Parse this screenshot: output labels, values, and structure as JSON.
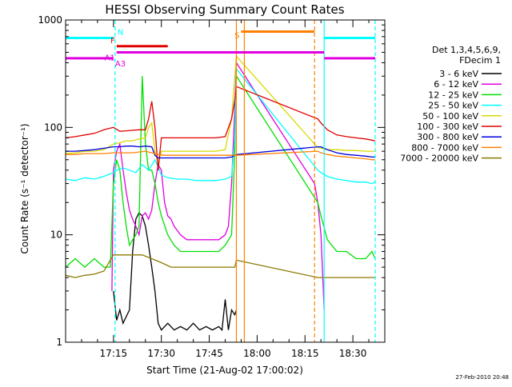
{
  "chart_data": {
    "type": "line",
    "title": "HESSI Observing Summary Count Rates",
    "xlabel": "Start Time (21-Aug-02 17:00:02)",
    "ylabel": "Count Rate (s⁻¹ detector⁻¹)",
    "yscale": "log",
    "ylim": [
      1,
      1000
    ],
    "xlim_minutes": [
      0,
      100
    ],
    "x_ticks": [
      {
        "t": 15,
        "label": "17:15"
      },
      {
        "t": 30,
        "label": "17:30"
      },
      {
        "t": 45,
        "label": "17:45"
      },
      {
        "t": 60,
        "label": "18:00"
      },
      {
        "t": 75,
        "label": "18:15"
      },
      {
        "t": 90,
        "label": "18:30"
      }
    ],
    "y_ticks": [
      {
        "v": 1,
        "label": "1"
      },
      {
        "v": 10,
        "label": "10"
      },
      {
        "v": 100,
        "label": "100"
      },
      {
        "v": 1000,
        "label": "1000"
      }
    ],
    "legend": {
      "placement": "right",
      "header": [
        "Det 1,3,4,5,6,9,",
        "FDecim 1"
      ],
      "entries": [
        {
          "label": "3 - 6 keV",
          "color": "#000000"
        },
        {
          "label": "6 - 12 keV",
          "color": "#e000e0"
        },
        {
          "label": "12 - 25 keV",
          "color": "#00e000"
        },
        {
          "label": "25 - 50 keV",
          "color": "#00ffff"
        },
        {
          "label": "50 - 100 keV",
          "color": "#d8d800"
        },
        {
          "label": "100 - 300 keV",
          "color": "#e00000"
        },
        {
          "label": "300 - 800 keV",
          "color": "#0000e0"
        },
        {
          "label": "800 - 7000 keV",
          "color": "#ff8000"
        },
        {
          "label": "7000 - 20000 keV",
          "color": "#8b7a00"
        }
      ]
    },
    "series": [
      {
        "name": "3 - 6 keV",
        "color": "#000000",
        "x": [
          15,
          16,
          17,
          18,
          20,
          21,
          22,
          23,
          24,
          25,
          26,
          27,
          28,
          29,
          30,
          32,
          34,
          36,
          38,
          40,
          42,
          44,
          46,
          48,
          49,
          50,
          51,
          52,
          53,
          53.5
        ],
        "y": [
          3,
          1.6,
          2,
          1.5,
          2,
          7,
          14,
          16,
          15,
          12,
          8,
          5,
          3,
          1.5,
          1.3,
          1.5,
          1.3,
          1.4,
          1.3,
          1.5,
          1.3,
          1.4,
          1.3,
          1.4,
          1.3,
          2.5,
          1.3,
          2,
          1.8,
          2
        ]
      },
      {
        "name": "6 - 12 keV",
        "color": "#e000e0",
        "x": [
          14.5,
          15,
          16,
          17,
          18,
          19,
          20,
          21,
          22,
          23,
          24,
          25,
          26,
          27,
          28,
          29,
          30,
          31,
          32,
          33,
          34,
          36,
          38,
          40,
          42,
          44,
          46,
          48,
          50,
          51,
          52,
          53,
          53.5,
          78,
          79,
          80,
          81
        ],
        "y": [
          3,
          40,
          60,
          70,
          40,
          25,
          17,
          14,
          12,
          10,
          15,
          16,
          14,
          17,
          30,
          45,
          40,
          20,
          15,
          14,
          12,
          10,
          9,
          9,
          9,
          9,
          9,
          9,
          10,
          12,
          30,
          150,
          400,
          30,
          20,
          10,
          2
        ]
      },
      {
        "name": "12 - 25 keV",
        "color": "#00e000",
        "x": [
          0,
          3,
          6,
          9,
          12,
          14,
          15,
          16,
          17,
          18,
          19,
          20,
          21,
          22,
          23,
          24,
          25,
          26,
          27,
          28,
          29,
          30,
          32,
          34,
          36,
          38,
          40,
          42,
          44,
          46,
          48,
          50,
          52,
          53,
          53.5,
          79,
          80,
          82,
          85,
          88,
          91,
          94,
          96,
          97
        ],
        "y": [
          5,
          6,
          5,
          6,
          5,
          5,
          30,
          50,
          40,
          20,
          12,
          8,
          9,
          10,
          12,
          300,
          70,
          40,
          40,
          30,
          20,
          15,
          10,
          8,
          7,
          7,
          7,
          7,
          7,
          7,
          7,
          8,
          10,
          60,
          300,
          20,
          15,
          9,
          7,
          7,
          6,
          6,
          7,
          6
        ]
      },
      {
        "name": "25 - 50 keV",
        "color": "#00ffff",
        "x": [
          0,
          3,
          6,
          9,
          12,
          15,
          16,
          18,
          20,
          22,
          24,
          26,
          28,
          30,
          32,
          35,
          38,
          41,
          44,
          47,
          50,
          52,
          53,
          53.5,
          79,
          80,
          82,
          85,
          88,
          91,
          94,
          96,
          97
        ],
        "y": [
          33,
          32,
          34,
          33,
          35,
          38,
          40,
          42,
          40,
          38,
          45,
          40,
          50,
          36,
          34,
          33,
          33,
          32,
          32,
          32,
          33,
          35,
          80,
          350,
          40,
          38,
          35,
          33,
          32,
          31,
          31,
          30,
          31
        ]
      },
      {
        "name": "50 - 100 keV",
        "color": "#d8d800",
        "x": [
          0,
          3,
          6,
          9,
          12,
          15,
          17,
          19,
          21,
          23,
          25,
          26,
          27,
          28,
          29,
          30,
          32,
          35,
          38,
          41,
          44,
          47,
          50,
          52,
          53,
          53.5,
          79,
          80,
          82,
          85,
          88,
          91,
          94,
          96,
          97
        ],
        "y": [
          57,
          58,
          60,
          60,
          62,
          70,
          72,
          75,
          75,
          78,
          80,
          100,
          110,
          60,
          45,
          60,
          60,
          60,
          60,
          60,
          60,
          60,
          62,
          120,
          300,
          460,
          65,
          64,
          62,
          62,
          61,
          61,
          60,
          60,
          60
        ]
      },
      {
        "name": "100 - 300 keV",
        "color": "#e00000",
        "x": [
          0,
          3,
          6,
          9,
          12,
          15,
          17,
          19,
          21,
          23,
          25,
          26,
          27,
          28,
          29,
          30,
          32,
          35,
          38,
          41,
          44,
          47,
          50,
          52,
          53,
          53.5,
          79,
          80,
          82,
          85,
          88,
          91,
          94,
          96,
          97
        ],
        "y": [
          80,
          82,
          85,
          88,
          95,
          100,
          92,
          93,
          94,
          95,
          95,
          120,
          175,
          100,
          40,
          80,
          80,
          80,
          80,
          80,
          80,
          80,
          82,
          120,
          180,
          240,
          120,
          110,
          95,
          85,
          82,
          80,
          78,
          76,
          75
        ]
      },
      {
        "name": "300 - 800 keV",
        "color": "#0000e0",
        "x": [
          0,
          3,
          6,
          9,
          12,
          15,
          17,
          19,
          21,
          23,
          25,
          27,
          28,
          29,
          30,
          32,
          35,
          38,
          41,
          44,
          47,
          50,
          52,
          53,
          53.5,
          79,
          80,
          82,
          85,
          88,
          91,
          94,
          96,
          97
        ],
        "y": [
          60,
          60,
          61,
          62,
          64,
          66,
          66,
          67,
          67,
          66,
          67,
          66,
          55,
          52,
          52,
          52,
          52,
          52,
          52,
          52,
          52,
          52,
          53,
          55,
          56,
          66,
          66,
          62,
          58,
          56,
          55,
          54,
          53,
          53
        ]
      },
      {
        "name": "800 - 7000 keV",
        "color": "#ff8000",
        "x": [
          0,
          3,
          6,
          9,
          12,
          15,
          17,
          19,
          21,
          23,
          25,
          27,
          29,
          31,
          35,
          40,
          45,
          50,
          52,
          53,
          53.5,
          79,
          80,
          82,
          85,
          88,
          91,
          94,
          96,
          97
        ],
        "y": [
          56,
          56,
          57,
          57,
          57,
          58,
          58,
          58,
          58,
          59,
          60,
          58,
          56,
          55,
          55,
          55,
          55,
          55,
          55,
          55,
          55,
          60,
          58,
          56,
          54,
          53,
          52,
          51,
          50,
          50
        ]
      },
      {
        "name": "7000 - 20000 keV",
        "color": "#8b7a00",
        "x": [
          0,
          3,
          6,
          9,
          12,
          15,
          18,
          21,
          24,
          27,
          30,
          33,
          36,
          39,
          42,
          45,
          48,
          51,
          53,
          53.5,
          79,
          80,
          82,
          85,
          88,
          91,
          94,
          96,
          97
        ],
        "y": [
          4.2,
          4,
          4.2,
          4.3,
          4.6,
          6.5,
          6.5,
          6.5,
          6.5,
          6,
          5.5,
          5,
          5,
          5,
          5,
          5,
          5,
          5,
          5,
          5.8,
          4,
          4,
          4,
          4,
          4,
          4,
          4,
          4,
          4
        ]
      }
    ],
    "annotations": [
      {
        "label": "N",
        "color": "#00ffff",
        "level": 680,
        "x1": 0,
        "x2": 15
      },
      {
        "label": "",
        "color": "#00ffff",
        "level": 680,
        "x1": 81,
        "x2": 97
      },
      {
        "label": "F",
        "color": "#e00000",
        "level": 570,
        "x1": 16,
        "x2": 32
      },
      {
        "label": "A1",
        "color": "#e000e0",
        "level": 500,
        "x1": 16,
        "x2": 81
      },
      {
        "label": "A3",
        "color": "#e000e0",
        "level": 440,
        "x1": 0,
        "x2": 15
      },
      {
        "label": "",
        "color": "#e000e0",
        "level": 440,
        "x1": 81,
        "x2": 97
      },
      {
        "label": "S",
        "color": "#ff8000",
        "level": 780,
        "x1": 55,
        "x2": 78
      }
    ],
    "vlines": [
      {
        "t": 15.5,
        "color": "#00ffff",
        "dash": true
      },
      {
        "t": 53.5,
        "color": "#ff8000",
        "dash": false
      },
      {
        "t": 56,
        "color": "#ff8000",
        "dash": false
      },
      {
        "t": 78,
        "color": "#ff8000",
        "dash": true
      },
      {
        "t": 81,
        "color": "#00ffff",
        "dash": false
      },
      {
        "t": 97,
        "color": "#00ffff",
        "dash": true
      }
    ],
    "footer_date": "27-Feb-2010 20:48"
  }
}
